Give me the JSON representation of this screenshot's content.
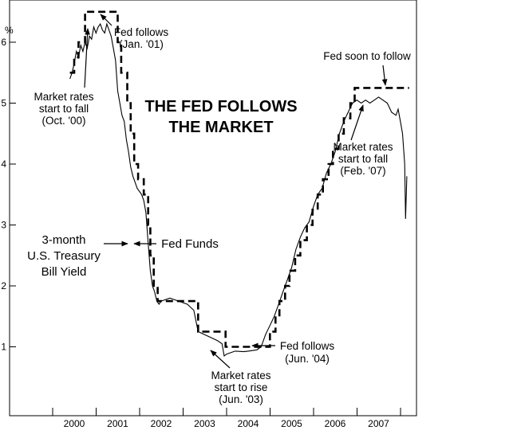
{
  "chart_data": {
    "type": "line",
    "title_lines": [
      "THE FED FOLLOWS",
      "THE MARKET"
    ],
    "xlabel": "",
    "ylabel": "%",
    "xlim": [
      1999.5,
      2008.0
    ],
    "ylim": [
      0,
      6.6
    ],
    "y_ticks": [
      1,
      2,
      3,
      4,
      5,
      6
    ],
    "x_tick_labels": [
      "2000",
      "2001",
      "2002",
      "2003",
      "2004",
      "2005",
      "2006",
      "2007"
    ],
    "grid": false,
    "series": [
      {
        "name": "Fed Funds",
        "style": "dashed-step",
        "points": [
          [
            1999.9,
            5.5
          ],
          [
            2000.0,
            5.5
          ],
          [
            2000.0,
            5.75
          ],
          [
            2000.1,
            5.75
          ],
          [
            2000.1,
            6.0
          ],
          [
            2000.2,
            6.0
          ],
          [
            2000.2,
            6.0
          ],
          [
            2000.25,
            6.0
          ],
          [
            2000.25,
            6.5
          ],
          [
            2001.0,
            6.5
          ],
          [
            2001.0,
            6.0
          ],
          [
            2001.08,
            6.0
          ],
          [
            2001.08,
            5.5
          ],
          [
            2001.22,
            5.5
          ],
          [
            2001.22,
            5.0
          ],
          [
            2001.3,
            5.0
          ],
          [
            2001.3,
            4.5
          ],
          [
            2001.38,
            4.5
          ],
          [
            2001.38,
            4.0
          ],
          [
            2001.47,
            4.0
          ],
          [
            2001.47,
            3.75
          ],
          [
            2001.6,
            3.75
          ],
          [
            2001.6,
            3.5
          ],
          [
            2001.7,
            3.5
          ],
          [
            2001.7,
            3.0
          ],
          [
            2001.75,
            3.0
          ],
          [
            2001.75,
            2.5
          ],
          [
            2001.83,
            2.5
          ],
          [
            2001.83,
            2.0
          ],
          [
            2001.92,
            2.0
          ],
          [
            2001.92,
            1.75
          ],
          [
            2002.85,
            1.75
          ],
          [
            2002.85,
            1.25
          ],
          [
            2003.48,
            1.25
          ],
          [
            2003.48,
            1.0
          ],
          [
            2004.5,
            1.0
          ],
          [
            2004.5,
            1.25
          ],
          [
            2004.63,
            1.25
          ],
          [
            2004.63,
            1.5
          ],
          [
            2004.72,
            1.5
          ],
          [
            2004.72,
            1.75
          ],
          [
            2004.85,
            1.75
          ],
          [
            2004.85,
            2.0
          ],
          [
            2004.95,
            2.0
          ],
          [
            2004.95,
            2.25
          ],
          [
            2005.08,
            2.25
          ],
          [
            2005.08,
            2.5
          ],
          [
            2005.2,
            2.5
          ],
          [
            2005.2,
            2.75
          ],
          [
            2005.35,
            2.75
          ],
          [
            2005.35,
            3.0
          ],
          [
            2005.48,
            3.0
          ],
          [
            2005.48,
            3.25
          ],
          [
            2005.6,
            3.25
          ],
          [
            2005.6,
            3.5
          ],
          [
            2005.72,
            3.5
          ],
          [
            2005.72,
            3.75
          ],
          [
            2005.85,
            3.75
          ],
          [
            2005.85,
            4.0
          ],
          [
            2005.95,
            4.0
          ],
          [
            2005.95,
            4.25
          ],
          [
            2006.08,
            4.25
          ],
          [
            2006.08,
            4.5
          ],
          [
            2006.2,
            4.5
          ],
          [
            2006.2,
            4.75
          ],
          [
            2006.35,
            4.75
          ],
          [
            2006.35,
            5.0
          ],
          [
            2006.45,
            5.0
          ],
          [
            2006.45,
            5.25
          ],
          [
            2007.7,
            5.25
          ]
        ]
      },
      {
        "name": "3-month U.S. Treasury Bill Yield",
        "style": "solid",
        "points": [
          [
            1999.9,
            5.4
          ],
          [
            1999.95,
            5.5
          ],
          [
            2000.0,
            5.65
          ],
          [
            2000.05,
            5.85
          ],
          [
            2000.1,
            5.75
          ],
          [
            2000.15,
            5.95
          ],
          [
            2000.2,
            5.85
          ],
          [
            2000.25,
            6.0
          ],
          [
            2000.3,
            5.9
          ],
          [
            2000.35,
            6.1
          ],
          [
            2000.4,
            6.05
          ],
          [
            2000.45,
            6.25
          ],
          [
            2000.5,
            6.15
          ],
          [
            2000.55,
            6.25
          ],
          [
            2000.6,
            6.3
          ],
          [
            2000.65,
            6.2
          ],
          [
            2000.7,
            6.15
          ],
          [
            2000.75,
            6.3
          ],
          [
            2000.8,
            6.2
          ],
          [
            2000.85,
            6.1
          ],
          [
            2000.9,
            5.9
          ],
          [
            2000.95,
            5.7
          ],
          [
            2001.0,
            5.2
          ],
          [
            2001.05,
            5.0
          ],
          [
            2001.1,
            4.8
          ],
          [
            2001.15,
            4.7
          ],
          [
            2001.2,
            4.4
          ],
          [
            2001.25,
            4.2
          ],
          [
            2001.3,
            3.95
          ],
          [
            2001.35,
            3.8
          ],
          [
            2001.4,
            3.7
          ],
          [
            2001.45,
            3.6
          ],
          [
            2001.5,
            3.55
          ],
          [
            2001.55,
            3.5
          ],
          [
            2001.6,
            3.4
          ],
          [
            2001.65,
            3.2
          ],
          [
            2001.7,
            2.7
          ],
          [
            2001.75,
            2.25
          ],
          [
            2001.8,
            2.0
          ],
          [
            2001.85,
            1.9
          ],
          [
            2001.9,
            1.75
          ],
          [
            2001.95,
            1.7
          ],
          [
            2002.0,
            1.75
          ],
          [
            2002.2,
            1.8
          ],
          [
            2002.4,
            1.75
          ],
          [
            2002.6,
            1.7
          ],
          [
            2002.75,
            1.6
          ],
          [
            2002.85,
            1.25
          ],
          [
            2003.0,
            1.2
          ],
          [
            2003.15,
            1.15
          ],
          [
            2003.3,
            1.1
          ],
          [
            2003.4,
            1.05
          ],
          [
            2003.45,
            0.85
          ],
          [
            2003.5,
            0.88
          ],
          [
            2003.7,
            0.93
          ],
          [
            2003.9,
            0.92
          ],
          [
            2004.0,
            0.93
          ],
          [
            2004.2,
            0.95
          ],
          [
            2004.3,
            1.0
          ],
          [
            2004.4,
            1.2
          ],
          [
            2004.5,
            1.35
          ],
          [
            2004.6,
            1.5
          ],
          [
            2004.7,
            1.7
          ],
          [
            2004.8,
            1.9
          ],
          [
            2004.9,
            2.1
          ],
          [
            2005.0,
            2.3
          ],
          [
            2005.1,
            2.6
          ],
          [
            2005.2,
            2.8
          ],
          [
            2005.3,
            2.95
          ],
          [
            2005.4,
            3.05
          ],
          [
            2005.5,
            3.3
          ],
          [
            2005.6,
            3.5
          ],
          [
            2005.7,
            3.6
          ],
          [
            2005.8,
            3.85
          ],
          [
            2005.9,
            4.0
          ],
          [
            2006.0,
            4.2
          ],
          [
            2006.1,
            4.5
          ],
          [
            2006.2,
            4.7
          ],
          [
            2006.3,
            4.85
          ],
          [
            2006.4,
            5.0
          ],
          [
            2006.5,
            5.05
          ],
          [
            2006.6,
            5.0
          ],
          [
            2006.7,
            5.05
          ],
          [
            2006.8,
            5.0
          ],
          [
            2006.9,
            5.05
          ],
          [
            2007.0,
            5.1
          ],
          [
            2007.1,
            5.05
          ],
          [
            2007.2,
            5.0
          ],
          [
            2007.3,
            4.85
          ],
          [
            2007.4,
            4.8
          ],
          [
            2007.45,
            4.9
          ],
          [
            2007.5,
            4.7
          ],
          [
            2007.55,
            4.5
          ],
          [
            2007.6,
            4.0
          ],
          [
            2007.62,
            3.1
          ],
          [
            2007.65,
            3.8
          ]
        ]
      }
    ],
    "annotations": [
      {
        "lines": [
          "Fed follows",
          "(Jan. '01)"
        ],
        "x": 2001.5,
        "y": 6.35
      },
      {
        "lines": [
          "Market rates",
          "start to fall",
          "(Oct. '00)"
        ],
        "x": 2000.1,
        "y": 5.15
      },
      {
        "lines": [
          "3-month",
          "U.S. Treasury",
          "Bill Yield"
        ],
        "x": 2000.0,
        "y": 2.95
      },
      {
        "lines": [
          "Fed Funds"
        ],
        "x": 2001.9,
        "y": 2.73
      },
      {
        "lines": [
          "Fed follows",
          "(Jun. '04)"
        ],
        "x": 2005.5,
        "y": 0.95
      },
      {
        "lines": [
          "Market rates",
          "start to rise",
          "(Jun. '03)"
        ],
        "x": 2003.9,
        "y": 0.6
      },
      {
        "lines": [
          "Fed soon to follow"
        ],
        "x": 2006.8,
        "y": 5.6
      },
      {
        "lines": [
          "Market rates",
          "start to fall",
          "(Feb. '07)"
        ],
        "x": 2006.4,
        "y": 4.25
      }
    ]
  }
}
